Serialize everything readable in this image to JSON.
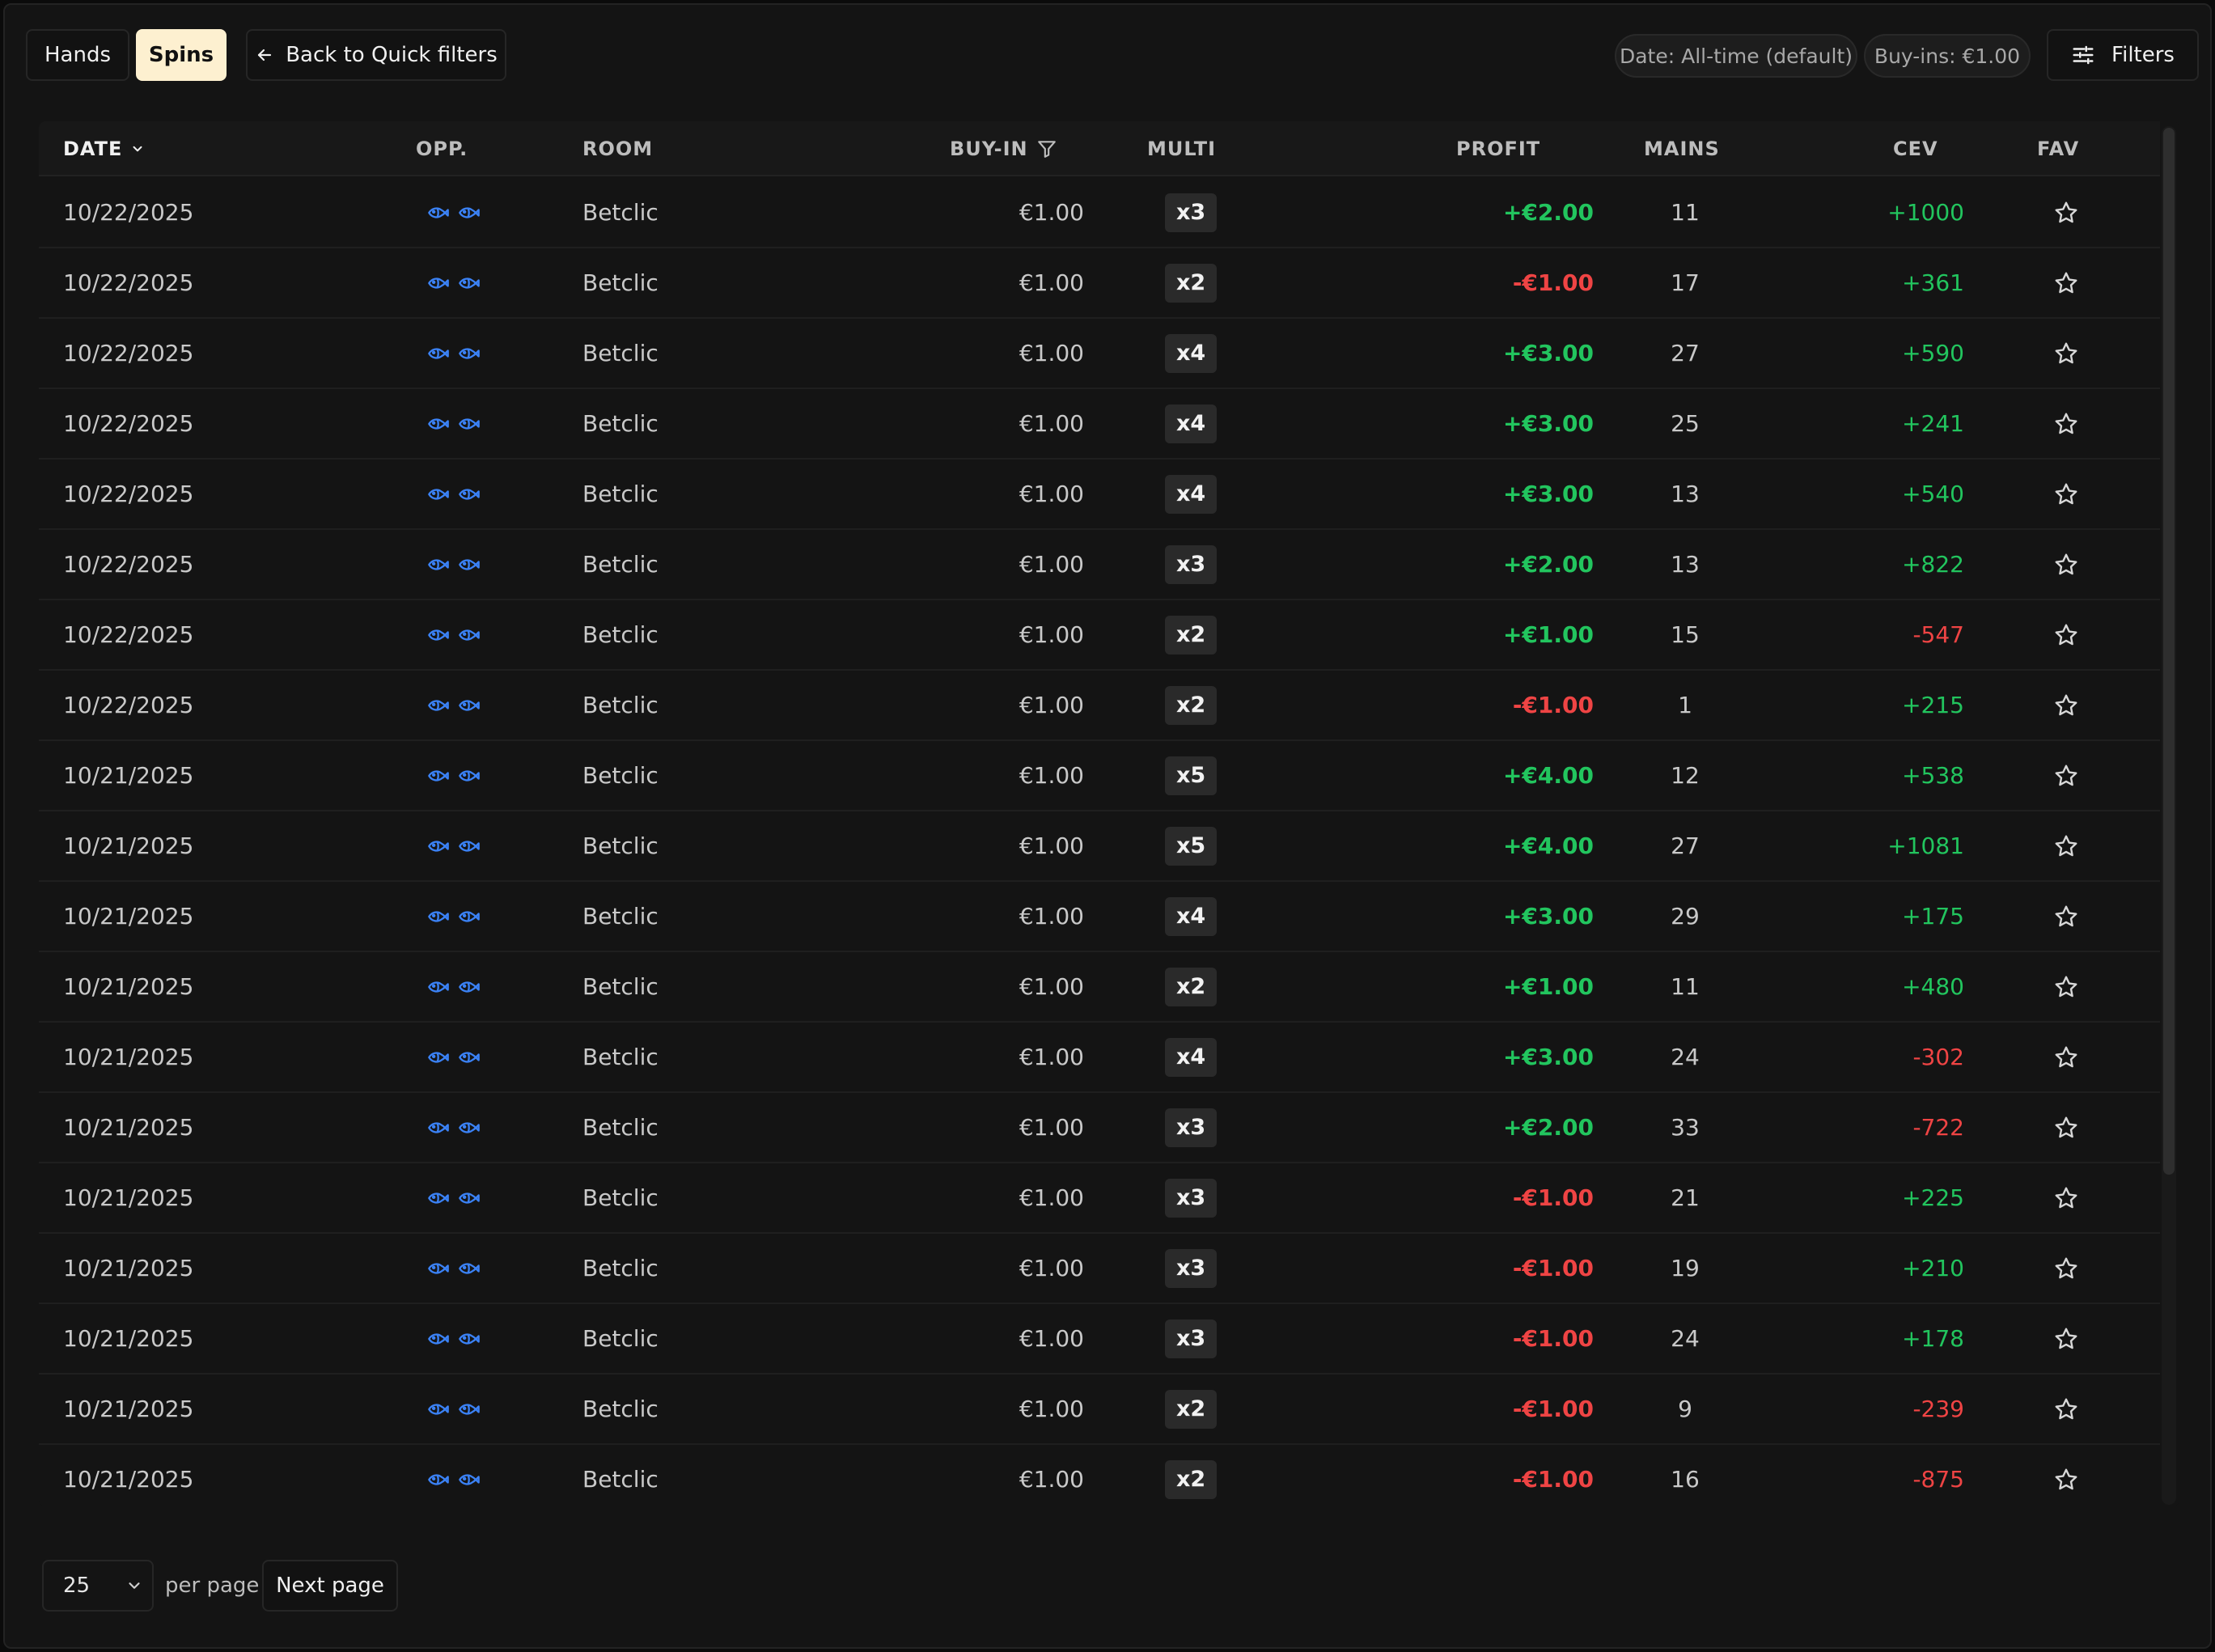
{
  "toolbar": {
    "hands_label": "Hands",
    "spins_label": "Spins",
    "back_label": "Back to Quick filters",
    "date_chip": "Date: All-time (default)",
    "buyin_chip": "Buy-ins: €1.00",
    "filters_label": "Filters"
  },
  "table": {
    "columns": {
      "date": "DATE",
      "opp": "OPP.",
      "room": "ROOM",
      "buyin": "BUY-IN",
      "multi": "MULTI",
      "profit": "PROFIT",
      "mains": "MAINS",
      "cev": "CEV",
      "fav": "FAV"
    },
    "rows": [
      {
        "date": "10/22/2025",
        "room": "Betclic",
        "buyin": "€1.00",
        "multi": "x3",
        "profit": "+€2.00",
        "mains": "11",
        "cev": "+1000"
      },
      {
        "date": "10/22/2025",
        "room": "Betclic",
        "buyin": "€1.00",
        "multi": "x2",
        "profit": "-€1.00",
        "mains": "17",
        "cev": "+361"
      },
      {
        "date": "10/22/2025",
        "room": "Betclic",
        "buyin": "€1.00",
        "multi": "x4",
        "profit": "+€3.00",
        "mains": "27",
        "cev": "+590"
      },
      {
        "date": "10/22/2025",
        "room": "Betclic",
        "buyin": "€1.00",
        "multi": "x4",
        "profit": "+€3.00",
        "mains": "25",
        "cev": "+241"
      },
      {
        "date": "10/22/2025",
        "room": "Betclic",
        "buyin": "€1.00",
        "multi": "x4",
        "profit": "+€3.00",
        "mains": "13",
        "cev": "+540"
      },
      {
        "date": "10/22/2025",
        "room": "Betclic",
        "buyin": "€1.00",
        "multi": "x3",
        "profit": "+€2.00",
        "mains": "13",
        "cev": "+822"
      },
      {
        "date": "10/22/2025",
        "room": "Betclic",
        "buyin": "€1.00",
        "multi": "x2",
        "profit": "+€1.00",
        "mains": "15",
        "cev": "-547"
      },
      {
        "date": "10/22/2025",
        "room": "Betclic",
        "buyin": "€1.00",
        "multi": "x2",
        "profit": "-€1.00",
        "mains": "1",
        "cev": "+215"
      },
      {
        "date": "10/21/2025",
        "room": "Betclic",
        "buyin": "€1.00",
        "multi": "x5",
        "profit": "+€4.00",
        "mains": "12",
        "cev": "+538"
      },
      {
        "date": "10/21/2025",
        "room": "Betclic",
        "buyin": "€1.00",
        "multi": "x5",
        "profit": "+€4.00",
        "mains": "27",
        "cev": "+1081"
      },
      {
        "date": "10/21/2025",
        "room": "Betclic",
        "buyin": "€1.00",
        "multi": "x4",
        "profit": "+€3.00",
        "mains": "29",
        "cev": "+175"
      },
      {
        "date": "10/21/2025",
        "room": "Betclic",
        "buyin": "€1.00",
        "multi": "x2",
        "profit": "+€1.00",
        "mains": "11",
        "cev": "+480"
      },
      {
        "date": "10/21/2025",
        "room": "Betclic",
        "buyin": "€1.00",
        "multi": "x4",
        "profit": "+€3.00",
        "mains": "24",
        "cev": "-302"
      },
      {
        "date": "10/21/2025",
        "room": "Betclic",
        "buyin": "€1.00",
        "multi": "x3",
        "profit": "+€2.00",
        "mains": "33",
        "cev": "-722"
      },
      {
        "date": "10/21/2025",
        "room": "Betclic",
        "buyin": "€1.00",
        "multi": "x3",
        "profit": "-€1.00",
        "mains": "21",
        "cev": "+225"
      },
      {
        "date": "10/21/2025",
        "room": "Betclic",
        "buyin": "€1.00",
        "multi": "x3",
        "profit": "-€1.00",
        "mains": "19",
        "cev": "+210"
      },
      {
        "date": "10/21/2025",
        "room": "Betclic",
        "buyin": "€1.00",
        "multi": "x3",
        "profit": "-€1.00",
        "mains": "24",
        "cev": "+178"
      },
      {
        "date": "10/21/2025",
        "room": "Betclic",
        "buyin": "€1.00",
        "multi": "x2",
        "profit": "-€1.00",
        "mains": "9",
        "cev": "-239"
      },
      {
        "date": "10/21/2025",
        "room": "Betclic",
        "buyin": "€1.00",
        "multi": "x2",
        "profit": "-€1.00",
        "mains": "16",
        "cev": "-875"
      }
    ]
  },
  "footer": {
    "page_size": "25",
    "per_page_label": "per page",
    "next_label": "Next page"
  },
  "colors": {
    "accent_chip": "#fdf0d0",
    "positive": "#22c55e",
    "negative": "#ef4444",
    "opponent_icon": "#3b82f6"
  },
  "icons": {
    "back": "arrow-left-icon",
    "filters": "sliders-icon",
    "sort": "chevron-down-icon",
    "column_filter": "funnel-icon",
    "opponent": "fish-icon",
    "favorite": "star-icon",
    "select": "chevron-down-icon"
  }
}
